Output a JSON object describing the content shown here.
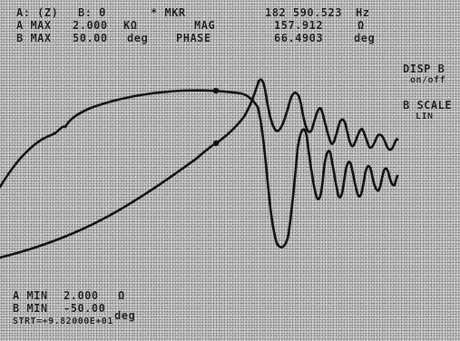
{
  "header": {
    "channel_a": "A: (Z)",
    "channel_b": "B: θ",
    "marker_label": "* MKR",
    "marker_value": "182 590.523",
    "marker_unit": "Hz",
    "a_max_label": "A MAX",
    "a_max_value": "2.000",
    "a_max_unit": "KΩ",
    "mag_label": "MAG",
    "mag_value": "157.912",
    "mag_unit": "Ω",
    "b_max_label": "B MAX",
    "b_max_value": "50.00",
    "b_max_unit": "deg",
    "phase_label": "PHASE",
    "phase_value": "66.4903",
    "phase_unit": "deg"
  },
  "softkeys": {
    "disp_b_label": "DISP B",
    "disp_b_state": "on/off",
    "b_scale_label": "B SCALE",
    "b_scale_state": "LIN"
  },
  "footer": {
    "a_min_label": "A MIN",
    "a_min_value": "2.000",
    "a_min_unit": "Ω",
    "b_min_label": "B MIN",
    "b_min_value": "-50.00",
    "b_min_unit": "deg",
    "start_readout": "STRT=+9.82000E+01"
  },
  "colors": {
    "trace": "#111111",
    "text": "#1a1a1a",
    "screen": "#c9c9c9"
  }
}
